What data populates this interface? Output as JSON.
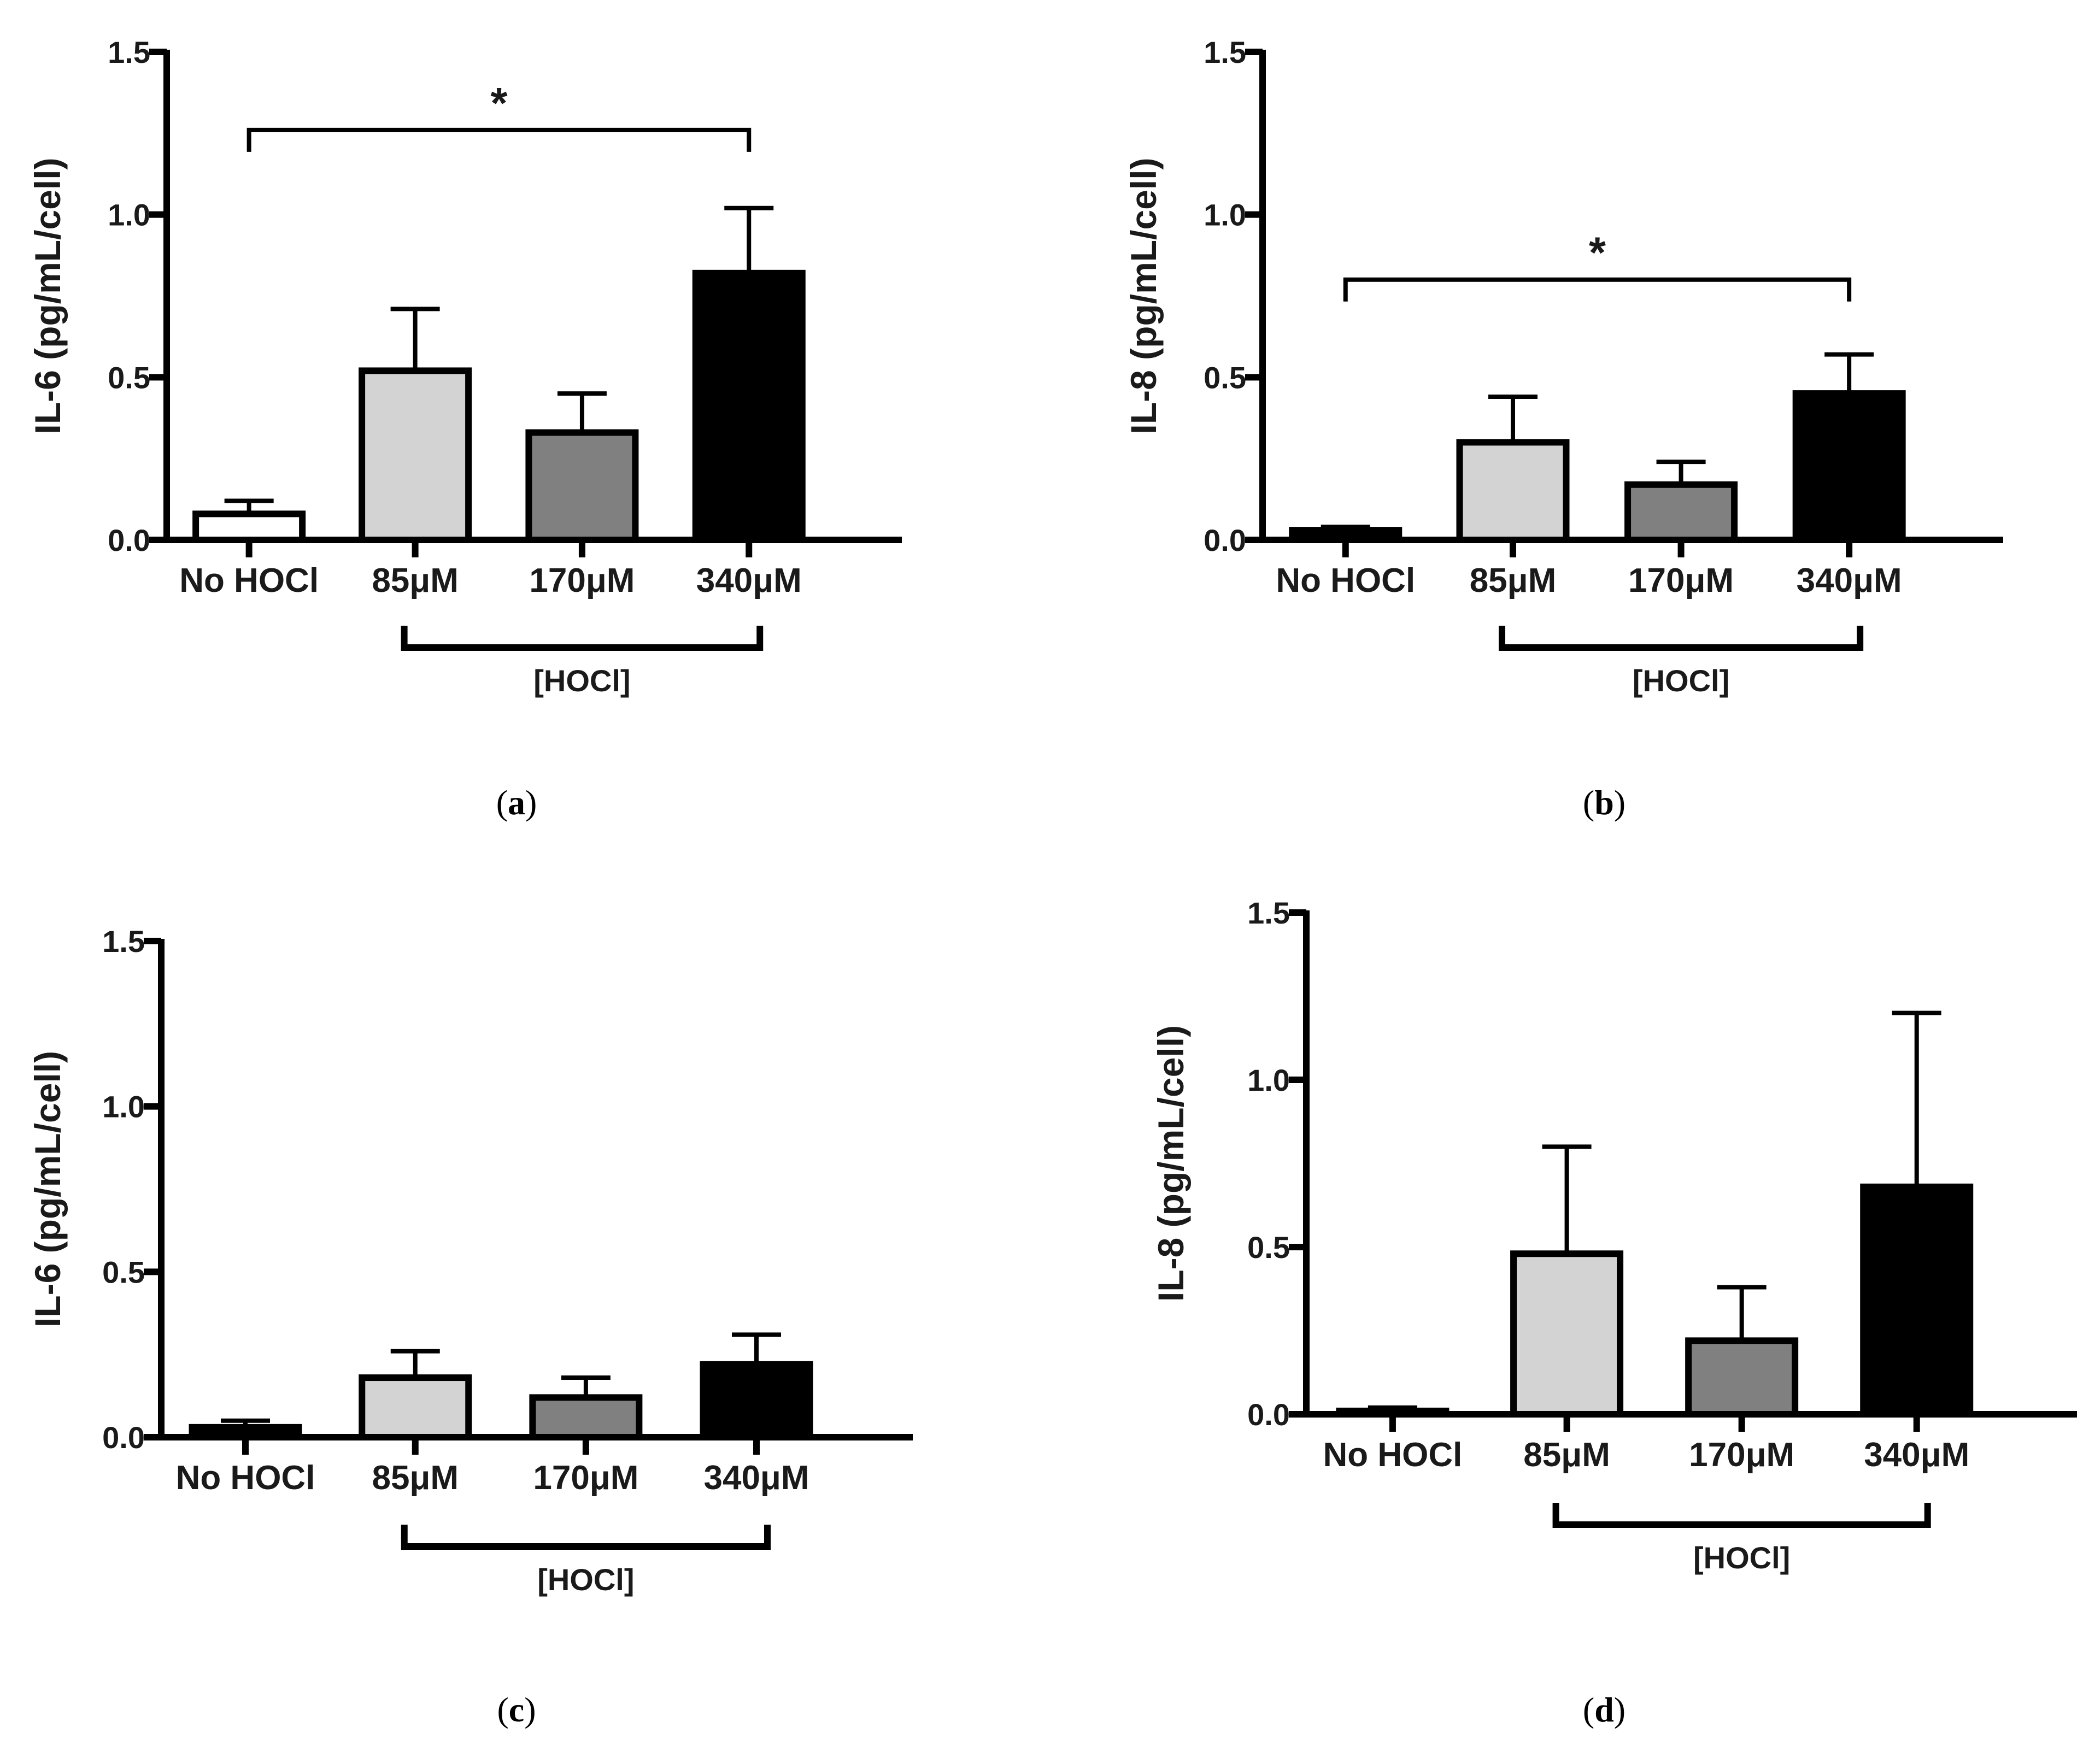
{
  "chart_data": [
    {
      "type": "bar",
      "panel_label": "a",
      "ylabel": "IL-6 (pg/mL/cell)",
      "xlabel": "",
      "categories": [
        "No HOCl",
        "85μM",
        "170μM",
        "340μM"
      ],
      "values": [
        0.08,
        0.52,
        0.33,
        0.82
      ],
      "errors": [
        0.04,
        0.19,
        0.12,
        0.2
      ],
      "bar_colors": [
        "#ffffff",
        "#d3d3d3",
        "#808080",
        "#000000"
      ],
      "ylim": [
        0,
        1.5
      ],
      "yticks": [
        "0.0",
        "0.5",
        "1.0",
        "1.5"
      ],
      "yticks_values": [
        0,
        0.5,
        1.0,
        1.5
      ],
      "group_bracket": {
        "label": "[HOCl]",
        "from_index": 1,
        "to_index": 3
      },
      "significance": {
        "label": "*",
        "from_index": 0,
        "to_index": 3,
        "level": 1.26
      }
    },
    {
      "type": "bar",
      "panel_label": "b",
      "ylabel": "IL-8 (pg/mL/cell)",
      "xlabel": "",
      "categories": [
        "No HOCl",
        "85μM",
        "170μM",
        "340μM"
      ],
      "values": [
        0.03,
        0.3,
        0.17,
        0.45
      ],
      "errors": [
        0.01,
        0.14,
        0.07,
        0.12
      ],
      "bar_colors": [
        "#000000",
        "#d3d3d3",
        "#808080",
        "#000000"
      ],
      "ylim": [
        0,
        1.5
      ],
      "yticks": [
        "0.0",
        "0.5",
        "1.0",
        "1.5"
      ],
      "yticks_values": [
        0,
        0.5,
        1.0,
        1.5
      ],
      "group_bracket": {
        "label": "[HOCl]",
        "from_index": 1,
        "to_index": 3
      },
      "significance": {
        "label": "*",
        "from_index": 0,
        "to_index": 3,
        "level": 0.8
      }
    },
    {
      "type": "bar",
      "panel_label": "c",
      "ylabel": "IL-6 (pg/mL/cell)",
      "xlabel": "",
      "categories": [
        "No HOCl",
        "85μM",
        "170μM",
        "340μM"
      ],
      "values": [
        0.03,
        0.18,
        0.12,
        0.22
      ],
      "errors": [
        0.02,
        0.08,
        0.06,
        0.09
      ],
      "bar_colors": [
        "#000000",
        "#d3d3d3",
        "#808080",
        "#000000"
      ],
      "ylim": [
        0,
        1.5
      ],
      "yticks": [
        "0.0",
        "0.5",
        "1.0",
        "1.5"
      ],
      "yticks_values": [
        0,
        0.5,
        1.0,
        1.5
      ],
      "group_bracket": {
        "label": "[HOCl]",
        "from_index": 1,
        "to_index": 3
      },
      "significance": null
    },
    {
      "type": "bar",
      "panel_label": "d",
      "ylabel": "IL-8 (pg/mL/cell)",
      "xlabel": "",
      "categories": [
        "No HOCl",
        "85μM",
        "170μM",
        "340μM"
      ],
      "values": [
        0.01,
        0.48,
        0.22,
        0.68
      ],
      "errors": [
        0.01,
        0.32,
        0.16,
        0.52
      ],
      "bar_colors": [
        "#000000",
        "#d3d3d3",
        "#808080",
        "#000000"
      ],
      "ylim": [
        0,
        1.5
      ],
      "yticks": [
        "0.0",
        "0.5",
        "1.0",
        "1.5"
      ],
      "yticks_values": [
        0,
        0.5,
        1.0,
        1.5
      ],
      "group_bracket": {
        "label": "[HOCl]",
        "from_index": 1,
        "to_index": 3
      },
      "significance": null
    }
  ]
}
